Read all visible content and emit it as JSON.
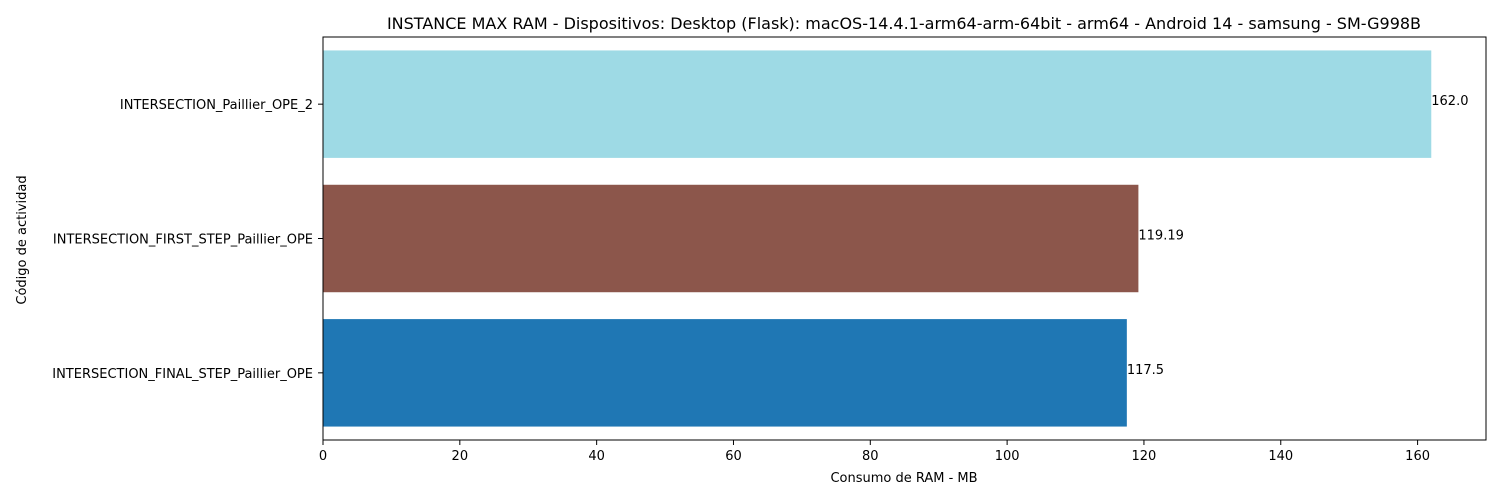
{
  "chart_data": {
    "type": "bar",
    "orientation": "horizontal",
    "title": "INSTANCE MAX RAM - Dispositivos: Desktop (Flask): macOS-14.4.1-arm64-arm-64bit - arm64 - Android 14 - samsung - SM-G998B",
    "xlabel": "Consumo de RAM - MB",
    "ylabel": "Código de actividad",
    "categories": [
      "INTERSECTION_Paillier_OPE_2",
      "INTERSECTION_FIRST_STEP_Paillier_OPE",
      "INTERSECTION_FINAL_STEP_Paillier_OPE"
    ],
    "values": [
      162.0,
      119.19,
      117.5
    ],
    "data_labels": [
      "162.0",
      "119.19",
      "117.5"
    ],
    "colors": [
      "#9edae5",
      "#8c564b",
      "#1f77b4"
    ],
    "xlim": [
      0,
      170
    ],
    "xticks": [
      0,
      20,
      40,
      60,
      80,
      100,
      120,
      140,
      160
    ],
    "xtick_labels": [
      "0",
      "20",
      "40",
      "60",
      "80",
      "100",
      "120",
      "140",
      "160"
    ],
    "grid": false,
    "legend": false
  }
}
